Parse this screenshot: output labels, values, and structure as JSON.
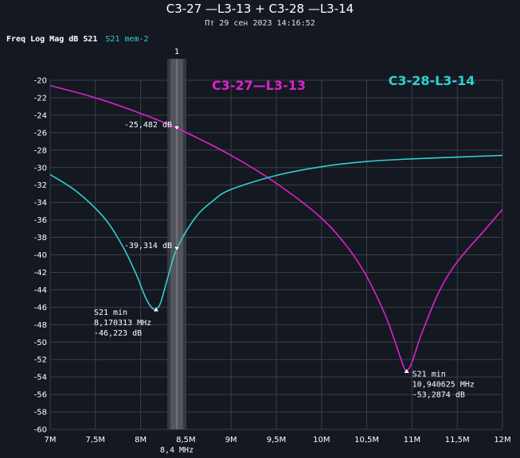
{
  "title": "C3-27 —L3-13 + C3-28 —L3-14",
  "subtitle": "Пт 29 сен 2023 14:16:52",
  "header": {
    "label": "Freq Log Mag dB S21",
    "memory": "S21 mem-2"
  },
  "colors": {
    "background": "#141821",
    "grid": "#3a3f48",
    "series_magenta": "#e020d0",
    "series_cyan": "#30d0d0",
    "marker_band": "#555a60"
  },
  "chart_data": {
    "type": "line",
    "xlabel": "",
    "ylabel": "",
    "xlim": [
      7,
      12
    ],
    "ylim": [
      -60,
      -20
    ],
    "x_ticks": [
      7,
      7.5,
      8,
      8.5,
      9,
      9.5,
      10,
      10.5,
      11,
      11.5,
      12
    ],
    "x_tick_labels": [
      "7M",
      "7,5M",
      "8M",
      "8,5M",
      "9M",
      "9,5M",
      "10M",
      "10,5M",
      "11M",
      "11,5M",
      "12M"
    ],
    "y_ticks": [
      -20,
      -22,
      -24,
      -26,
      -28,
      -30,
      -32,
      -34,
      -36,
      -38,
      -40,
      -42,
      -44,
      -46,
      -48,
      -50,
      -52,
      -54,
      -56,
      -58,
      -60
    ],
    "series": [
      {
        "name": "C3-27—L3-13",
        "color": "#e020d0",
        "x": [
          7.0,
          7.5,
          8.0,
          8.4,
          9.0,
          9.5,
          10.0,
          10.3,
          10.5,
          10.7,
          10.8,
          10.9,
          10.94,
          11.0,
          11.1,
          11.3,
          11.5,
          11.8,
          12.0
        ],
        "y": [
          -20.6,
          -22.0,
          -23.8,
          -25.48,
          -28.6,
          -31.8,
          -35.8,
          -39.3,
          -42.5,
          -46.8,
          -49.6,
          -52.6,
          -53.29,
          -52.3,
          -49.2,
          -44.2,
          -40.8,
          -37.2,
          -34.8
        ]
      },
      {
        "name": "C3-28-L3-14",
        "color": "#30d0d0",
        "x": [
          7.0,
          7.3,
          7.6,
          7.8,
          7.95,
          8.05,
          8.12,
          8.17,
          8.22,
          8.3,
          8.4,
          8.6,
          8.8,
          9.0,
          9.5,
          10.0,
          10.5,
          11.0,
          11.5,
          12.0
        ],
        "y": [
          -30.8,
          -32.8,
          -35.8,
          -39.0,
          -42.2,
          -44.8,
          -46.0,
          -46.22,
          -45.5,
          -42.6,
          -39.31,
          -35.8,
          -33.8,
          -32.5,
          -30.9,
          -29.9,
          -29.3,
          -29.0,
          -28.8,
          -28.6
        ]
      }
    ],
    "markers": [
      {
        "label": "1",
        "x": 8.4,
        "x_label": "8,4 MHz",
        "values": [
          "-25,482 dB",
          "-39,314 dB"
        ],
        "y": [
          -25.482,
          -39.314
        ]
      }
    ],
    "annotations": [
      {
        "series": "C3-28-L3-14",
        "x": 8.170313,
        "y": -46.223,
        "lines": [
          "S21 min",
          "8,170313 MHz",
          "-46,223 dB"
        ]
      },
      {
        "series": "C3-27—L3-13",
        "x": 10.940625,
        "y": -53.2874,
        "lines": [
          "S21 min",
          "10,940625 MHz",
          "-53,2874 dB"
        ]
      }
    ],
    "grid": true
  }
}
